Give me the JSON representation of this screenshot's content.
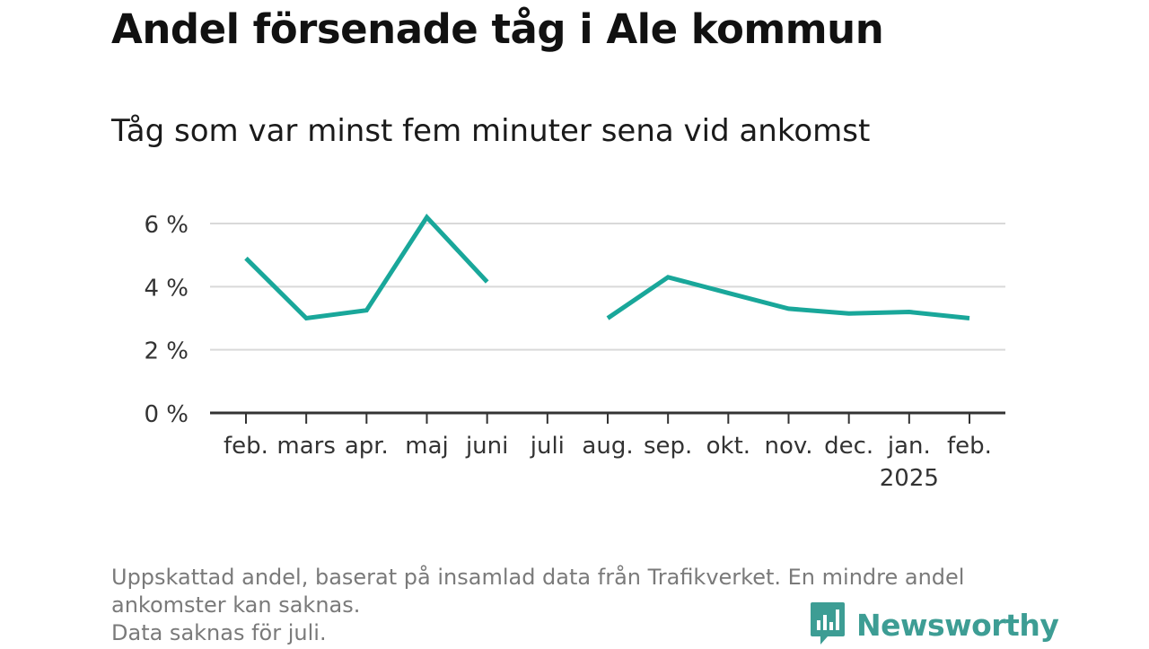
{
  "title": "Andel försenade tåg i Ale kommun",
  "subtitle": "Tåg som var minst fem minuter sena vid ankomst",
  "footnote": {
    "line1": "Uppskattad andel, baserat på insamlad data från Trafikverket. En mindre andel",
    "line2": "ankomster kan saknas.",
    "line3": "Data saknas för juli."
  },
  "brand": {
    "name": "Newsworthy",
    "color": "#3d9d94",
    "icon": "newsworthy-logo-icon"
  },
  "chart_data": {
    "type": "line",
    "title": "Andel försenade tåg i Ale kommun",
    "subtitle": "Tåg som var minst fem minuter sena vid ankomst",
    "xlabel": "",
    "ylabel": "",
    "categories": [
      "feb.",
      "mars",
      "apr.",
      "maj",
      "juni",
      "juli",
      "aug.",
      "sep.",
      "okt.",
      "nov.",
      "dec.",
      "jan.",
      "feb."
    ],
    "category_sublabels": [
      "",
      "",
      "",
      "",
      "",
      "",
      "",
      "",
      "",
      "",
      "",
      "2025",
      ""
    ],
    "series": [
      {
        "color": "#19a79a",
        "values": [
          4.9,
          3.0,
          3.25,
          6.2,
          4.15,
          null,
          3.0,
          4.3,
          3.8,
          3.3,
          3.15,
          3.2,
          3.0
        ]
      }
    ],
    "ylim": [
      0,
      6.5
    ],
    "yticks": [
      0,
      2,
      4,
      6
    ],
    "ytick_labels": [
      "0 %",
      "2 %",
      "4 %",
      "6 %"
    ],
    "grid": true,
    "legend": "none"
  }
}
